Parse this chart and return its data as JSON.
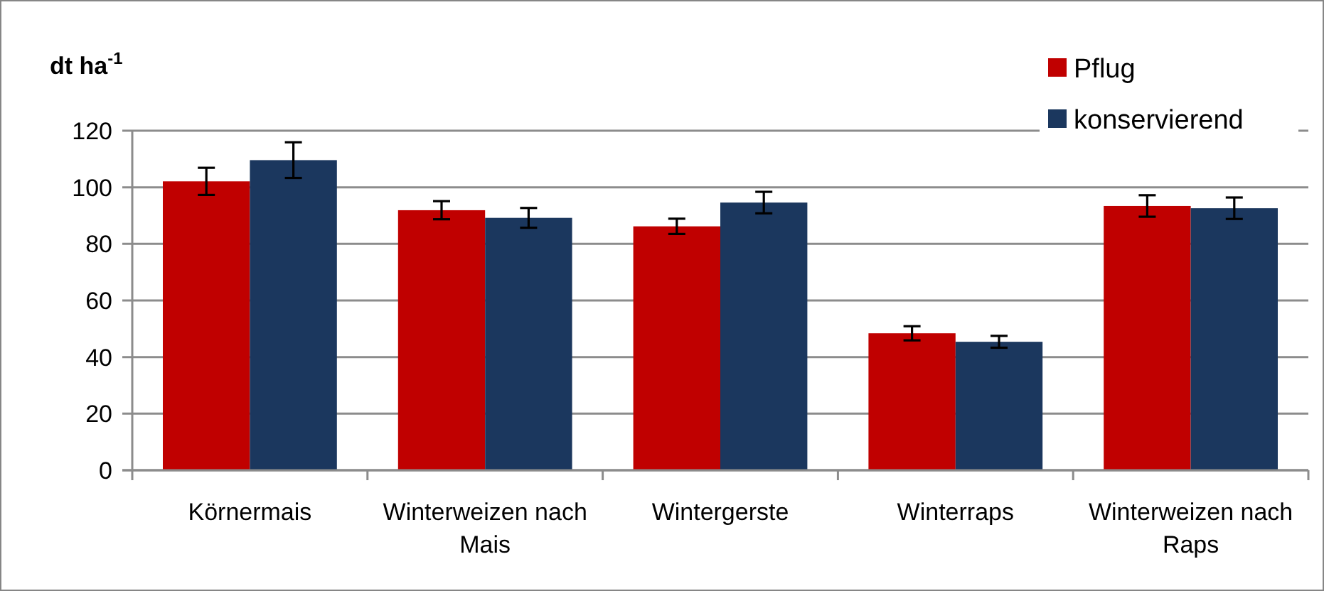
{
  "chart_data": {
    "type": "bar",
    "ylabel": "dt ha$^{-1}$",
    "categories": [
      "Körnermais",
      "Winterweizen nach Mais",
      "Wintergerste",
      "Winterraps",
      "Winterweizen nach Raps"
    ],
    "series": [
      {
        "name": "Pflug",
        "color": "#c00000",
        "values": [
          102.1,
          91.9,
          86.2,
          48.4,
          93.4
        ],
        "errors": [
          4.8,
          3.2,
          2.7,
          2.5,
          3.8
        ]
      },
      {
        "name": "konservierend",
        "color": "#1b375e",
        "values": [
          109.6,
          89.2,
          94.6,
          45.4,
          92.6
        ],
        "errors": [
          6.3,
          3.5,
          3.8,
          2.1,
          3.8
        ]
      }
    ],
    "ylim": [
      0,
      120
    ],
    "yticks": [
      0,
      20,
      40,
      60,
      80,
      100,
      120
    ],
    "grid": "y",
    "legend": "top right"
  }
}
